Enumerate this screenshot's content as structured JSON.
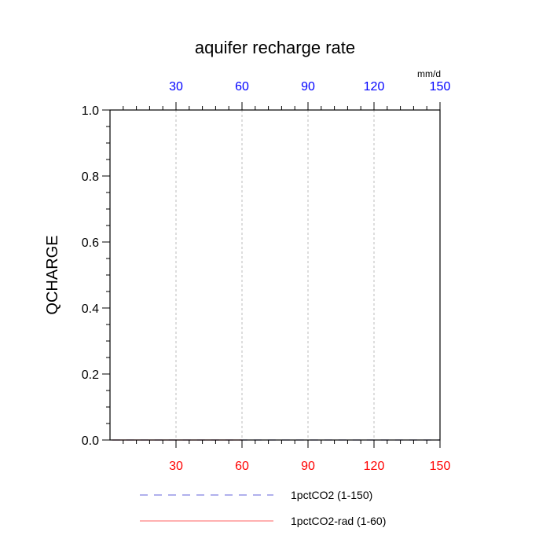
{
  "chart_data": {
    "type": "line",
    "title": "aquifer recharge rate",
    "units": "mm/d",
    "ylabel": "QCHARGE",
    "xlabel": "",
    "xlim": [
      0,
      150
    ],
    "ylim": [
      0,
      1
    ],
    "x_ticks_bottom": [
      30,
      60,
      90,
      120,
      150
    ],
    "x_ticks_top": [
      30,
      60,
      90,
      120,
      150
    ],
    "y_ticks": [
      0.0,
      0.2,
      0.4,
      0.6,
      0.8,
      1.0
    ],
    "y_tick_labels": [
      "0.0",
      "0.2",
      "0.4",
      "0.6",
      "0.8",
      "1.0"
    ],
    "x_minor_step": 6,
    "y_minor_step": 0.05,
    "grid": "vertical dashed at x ticks",
    "legend_position": "bottom",
    "colors": {
      "bottom_tick_labels": "#ff0000",
      "top_tick_labels": "#0000ff",
      "grid": "#bbbbbb",
      "axis": "#000000"
    },
    "series": [
      {
        "name": "1pctCO2 (1-150)",
        "color": "#8080e0",
        "dash": "dashed",
        "x": [
          1,
          150
        ],
        "y": [
          0,
          0
        ]
      },
      {
        "name": "1pctCO2-rad (1-60)",
        "color": "#ff8080",
        "dash": "solid",
        "x": [
          1,
          60
        ],
        "y": [
          0,
          0
        ]
      }
    ]
  }
}
